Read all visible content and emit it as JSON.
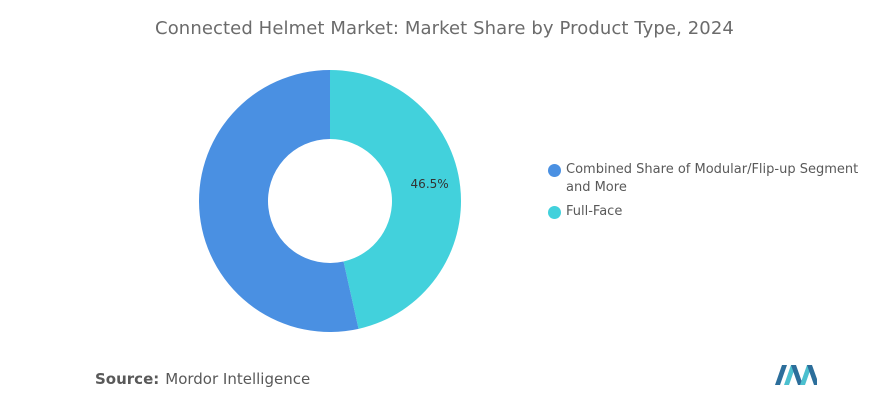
{
  "title": "Connected Helmet Market: Market Share by Product Type, 2024",
  "chart_data": {
    "type": "pie",
    "style": "donut",
    "title": "Connected Helmet Market: Market Share by Product Type, 2024",
    "series": [
      {
        "name": "Combined Share of Modular/Flip-up Segment and More",
        "value": 53.5,
        "color": "#4a90e2"
      },
      {
        "name": "Full-Face",
        "value": 46.5,
        "color": "#42d1dc"
      }
    ],
    "data_labels": [
      {
        "series": "Full-Face",
        "text": "46.5%"
      }
    ],
    "legend_position": "right"
  },
  "source": {
    "label": "Source:",
    "value": "Mordor Intelligence"
  },
  "logo": {
    "icon": "mordor-intelligence-logo",
    "color_dark": "#2c6e9b",
    "color_light": "#4cc0cf"
  }
}
